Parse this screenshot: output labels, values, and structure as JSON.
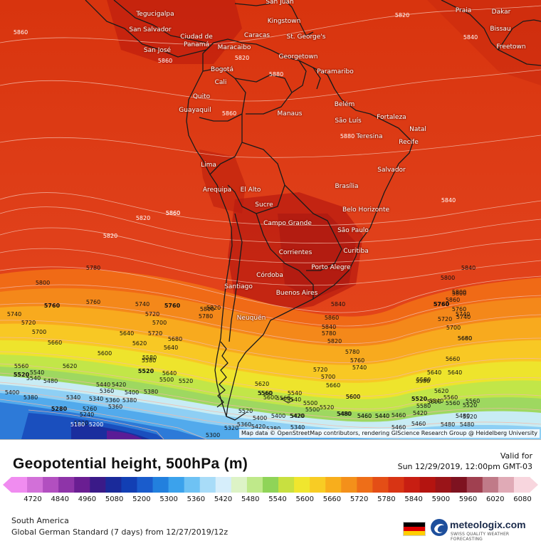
{
  "title": "Geopotential height, 500hPa (m)",
  "valid_label": "Valid for",
  "valid_date": "Sun 12/29/2019, 12:00pm GMT-03",
  "region": "South America",
  "model_run": "Global German Standard (7 days)  from  12/27/2019/12z",
  "attribution": "Map data © OpenStreetMap contributors, rendering GIScience Research Group @ Heidelberg University",
  "brand": {
    "name": "meteologix.com",
    "tagline": "SWISS QUALITY WEATHER FORECASTING",
    "logo_icon": "swirl-icon"
  },
  "flag_colors": [
    "#000000",
    "#dd0000",
    "#ffce00"
  ],
  "colorbar": {
    "ticks": [
      "4720",
      "4840",
      "4960",
      "5080",
      "5200",
      "5300",
      "5360",
      "5420",
      "5480",
      "5540",
      "5600",
      "5660",
      "5720",
      "5780",
      "5840",
      "5900",
      "5960",
      "6020",
      "6080"
    ],
    "colors": [
      "#f08cf0",
      "#d270d8",
      "#b24fc0",
      "#8e34a8",
      "#6a1e92",
      "#3a1a88",
      "#1a2a9a",
      "#123fb4",
      "#1a5ccc",
      "#2280de",
      "#3ba2ec",
      "#6ec2f4",
      "#a8dcf8",
      "#d6eefb",
      "#ddf3c6",
      "#bfe98a",
      "#8fd458",
      "#c8e040",
      "#f0e62e",
      "#f8cc24",
      "#f8ae1c",
      "#f4901a",
      "#ee6e18",
      "#e44e16",
      "#d83414",
      "#c81e12",
      "#b41410",
      "#9a1418",
      "#7e1220",
      "#a04050",
      "#c07a88",
      "#e0aab6",
      "#f8d6de"
    ]
  },
  "map": {
    "cities": [
      {
        "name": "Tegucigalpa"
      },
      {
        "name": "San Salvador"
      },
      {
        "name": "Ciudad de Panamá"
      },
      {
        "name": "San José"
      },
      {
        "name": "Kingstown"
      },
      {
        "name": "Caracas"
      },
      {
        "name": "St. George's"
      },
      {
        "name": "Maracaibo"
      },
      {
        "name": "Georgetown"
      },
      {
        "name": "Paramaribo"
      },
      {
        "name": "Bogotá"
      },
      {
        "name": "Cali"
      },
      {
        "name": "Quito"
      },
      {
        "name": "Guayaquil"
      },
      {
        "name": "Belém"
      },
      {
        "name": "Manaus"
      },
      {
        "name": "Fortaleza"
      },
      {
        "name": "São Luís"
      },
      {
        "name": "Teresina"
      },
      {
        "name": "Natal"
      },
      {
        "name": "Recife"
      },
      {
        "name": "Lima"
      },
      {
        "name": "Salvador"
      },
      {
        "name": "Arequipa"
      },
      {
        "name": "El Alto"
      },
      {
        "name": "Brasília"
      },
      {
        "name": "Sucre"
      },
      {
        "name": "Belo Horizonte"
      },
      {
        "name": "Campo Grande"
      },
      {
        "name": "São Paulo"
      },
      {
        "name": "Curitiba"
      },
      {
        "name": "Corrientes"
      },
      {
        "name": "Porto Alegre"
      },
      {
        "name": "Córdoba"
      },
      {
        "name": "Santiago"
      },
      {
        "name": "Buenos Aires"
      },
      {
        "name": "Neuquén"
      },
      {
        "name": "Praia"
      },
      {
        "name": "Dakar"
      },
      {
        "name": "Bissau"
      },
      {
        "name": "Freetown"
      },
      {
        "name": "San Juan"
      }
    ],
    "contour_labels": [
      "5820",
      "5860",
      "5840",
      "5860",
      "5820",
      "5820",
      "5800",
      "5880",
      "5860",
      "5880",
      "5860",
      "5840",
      "5820",
      "5860",
      "5840",
      "5840",
      "5860",
      "5820",
      "5780",
      "5800",
      "5780",
      "5780",
      "5760",
      "5740",
      "5740",
      "5720",
      "5740",
      "5760",
      "5760",
      "5720",
      "5700",
      "5800",
      "5780",
      "5760",
      "5840",
      "5860",
      "5800",
      "5820",
      "5800",
      "5760",
      "5760",
      "5720",
      "5740",
      "5700",
      "5680",
      "5740",
      "5760",
      "5700",
      "5660",
      "5720",
      "5700",
      "5720",
      "5640",
      "5600",
      "5660",
      "5680",
      "5640",
      "5620",
      "5660",
      "5600",
      "5660",
      "5560",
      "5540",
      "5560",
      "5580",
      "5500",
      "5520",
      "5520",
      "5480",
      "5540",
      "5600",
      "5560",
      "5580",
      "5620",
      "5640",
      "5520",
      "5640",
      "5620",
      "5580",
      "5540",
      "5560",
      "5640",
      "5600",
      "5560",
      "5540",
      "5500",
      "5520",
      "5480",
      "5460",
      "5440",
      "5420",
      "5400",
      "5380",
      "5400",
      "5340",
      "5320",
      "5300",
      "5280",
      "5260",
      "5240",
      "5220",
      "5200",
      "5180",
      "5380",
      "5360",
      "5340",
      "5360",
      "5440",
      "5420",
      "5400",
      "5380",
      "5360",
      "5400",
      "5420",
      "5460",
      "5420",
      "5460",
      "5480",
      "5440",
      "5460",
      "5420",
      "5380",
      "5360",
      "5340",
      "5520",
      "5480",
      "5460",
      "5480",
      "5520",
      "5500",
      "5520",
      "5540",
      "5560",
      "5600",
      "5580",
      "5620",
      "5600",
      "5560",
      "5520",
      "5580",
      "5480"
    ]
  }
}
